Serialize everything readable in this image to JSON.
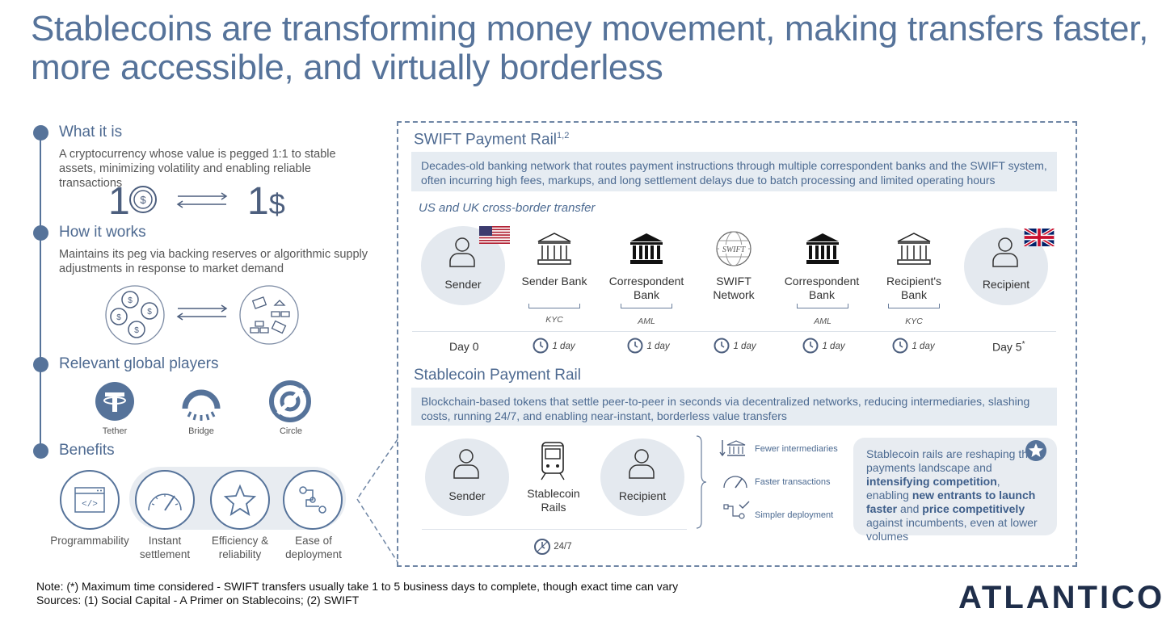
{
  "title": "Stablecoins are transforming money movement, making transfers faster, more accessible, and virtually borderless",
  "left": {
    "what": {
      "heading": "What it is",
      "text": "A cryptocurrency whose value is pegged 1:1 to stable assets, minimizing volatility and enabling reliable transactions",
      "left_num": "1",
      "right_num": "1",
      "dollar": "$"
    },
    "how": {
      "heading": "How it works",
      "text": "Maintains its peg via backing reserves or algorithmic supply adjustments in response to market demand"
    },
    "players": {
      "heading": "Relevant global players",
      "items": [
        "Tether",
        "Bridge",
        "Circle"
      ]
    },
    "benefits": {
      "heading": "Benefits",
      "items": [
        "Programmability",
        "Instant\nsettlement",
        "Efficiency &\nreliability",
        "Ease of\ndeployment"
      ]
    }
  },
  "swift": {
    "heading": "SWIFT Payment Rail",
    "sup": "1,2",
    "desc": "Decades-old banking network that routes payment instructions through multiple correspondent banks and the SWIFT system, often incurring high fees, markups, and long settlement delays due to batch processing and limited operating hours",
    "subtitle": "US and UK cross-border transfer",
    "nodes": [
      "Sender",
      "Sender Bank",
      "Correspondent\nBank",
      "SWIFT\nNetwork",
      "Correspondent\nBank",
      "Recipient's\nBank",
      "Recipient"
    ],
    "checks": [
      "KYC",
      "AML",
      "AML",
      "KYC"
    ],
    "swift_logo": "SWIFT",
    "day_start": "Day 0",
    "day_end": "Day 5",
    "day_end_sup": "*",
    "step": "1 day"
  },
  "stable": {
    "heading": "Stablecoin Payment Rail",
    "desc": "Blockchain-based tokens that settle peer-to-peer in seconds via decentralized networks, reducing intermediaries, slashing costs, running 24/7, and enabling near-instant, borderless value transfers",
    "nodes": [
      "Sender",
      "Stablecoin\nRails",
      "Recipient"
    ],
    "time": "24/7",
    "features": [
      "Fewer intermediaries",
      "Faster transactions",
      "Simpler deployment"
    ],
    "callout": {
      "p1": "Stablecoin rails are reshaping the payments landscape and ",
      "b1": "intensifying competition",
      "p2": ", enabling ",
      "b2": "new entrants to launch faster",
      "p3": " and ",
      "b3": "price competitively",
      "p4": " against incumbents, even at lower volumes"
    }
  },
  "notes": {
    "line1": "Note: (*) Maximum time considered - SWIFT transfers usually take 1 to 5 business days to complete, though exact time can vary",
    "line2": "Sources: (1) Social Capital - A Primer on Stablecoins; (2) SWIFT"
  },
  "logo": "ATLANTICO",
  "colors": {
    "accent": "#56739a",
    "navy": "#1f2e4a",
    "band": "#e6ecf2"
  }
}
